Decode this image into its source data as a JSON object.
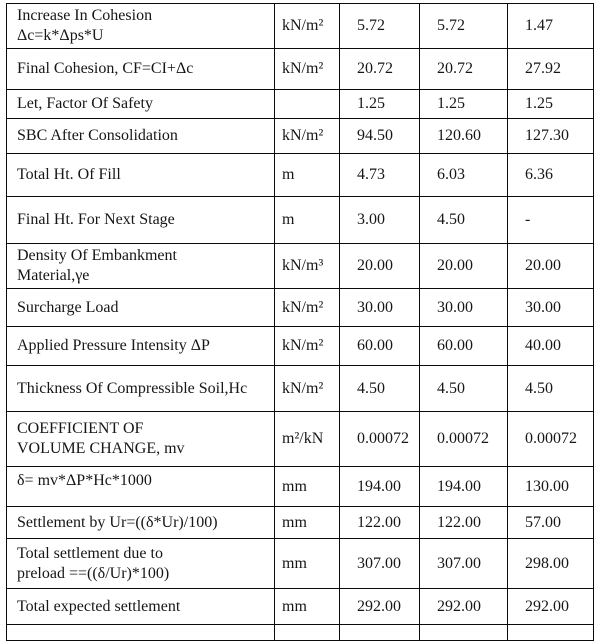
{
  "table": {
    "description": "Stage-wise preloading consolidation and settlement calculation table",
    "colors": {
      "border": "#0b0b0b",
      "text": "#161616",
      "background": "#ffffff"
    },
    "rows": [
      {
        "label": "Increase In Cohesion\nΔc=k*Δps*U",
        "unit": "kN/m²",
        "values": [
          "5.72",
          "5.72",
          "1.47"
        ]
      },
      {
        "label": "Final Cohesion, CF=CI+Δc",
        "unit": "kN/m²",
        "values": [
          "20.72",
          "20.72",
          "27.92"
        ]
      },
      {
        "label": "Let, Factor Of Safety",
        "unit": "",
        "values": [
          "1.25",
          "1.25",
          "1.25"
        ]
      },
      {
        "label": "SBC After Consolidation",
        "unit": "kN/m²",
        "values": [
          "94.50",
          "120.60",
          "127.30"
        ]
      },
      {
        "label": "Total Ht. Of Fill",
        "unit": "m",
        "values": [
          "4.73",
          "6.03",
          "6.36"
        ]
      },
      {
        "label": "Final Ht. For Next Stage",
        "unit": "m",
        "values": [
          "3.00",
          "4.50",
          "-"
        ]
      },
      {
        "label": "Density Of Embankment\nMaterial,γe",
        "unit": "kN/m³",
        "values": [
          "20.00",
          "20.00",
          "20.00"
        ]
      },
      {
        "label": "Surcharge Load",
        "unit": "kN/m²",
        "values": [
          "30.00",
          "30.00",
          "30.00"
        ]
      },
      {
        "label": "Applied Pressure Intensity ΔP",
        "unit": "kN/m²",
        "values": [
          "60.00",
          "60.00",
          "40.00"
        ]
      },
      {
        "label": "Thickness Of Compressible Soil,Hc",
        "unit": "kN/m²",
        "values": [
          "4.50",
          "4.50",
          "4.50"
        ]
      },
      {
        "label": "COEFFICIENT OF\nVOLUME CHANGE, mv",
        "unit": "m²/kN",
        "values": [
          "0.00072",
          "0.00072",
          "0.00072"
        ]
      },
      {
        "label": "δ= mv*ΔP*Hc*1000",
        "unit": "mm",
        "values": [
          "194.00",
          "194.00",
          "130.00"
        ]
      },
      {
        "label": "Settlement by Ur=((δ*Ur)/100)",
        "unit": "mm",
        "values": [
          "122.00",
          "122.00",
          "57.00"
        ]
      },
      {
        "label": "Total settlement due to\npreload ==((δ/Ur)*100)",
        "unit": "mm",
        "values": [
          "307.00",
          "307.00",
          "298.00"
        ]
      },
      {
        "label": "Total expected settlement",
        "unit": "mm",
        "values": [
          "292.00",
          "292.00",
          "292.00"
        ]
      }
    ]
  }
}
